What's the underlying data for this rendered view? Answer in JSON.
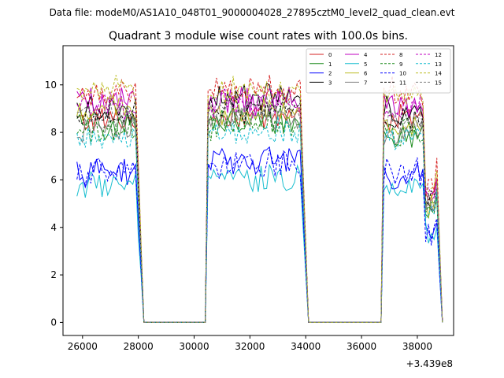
{
  "figure": {
    "suptitle": "Data file: modeM0/AS1A10_048T01_9000004028_27895cztM0_level2_quad_clean.evt",
    "title": "Quadrant 3 module wise count rates with 100.0s bins.",
    "offset_label": "+3.439e8"
  },
  "chart_data": {
    "type": "line",
    "title": "Quadrant 3 module wise count rates with 100.0s bins.",
    "xlabel": "",
    "ylabel": "",
    "xlim": [
      25300,
      39300
    ],
    "ylim": [
      -0.55,
      11.65
    ],
    "x_offset": 343900000,
    "xticks": [
      26000,
      28000,
      30000,
      32000,
      34000,
      36000,
      38000
    ],
    "yticks": [
      0,
      2,
      4,
      6,
      8,
      10
    ],
    "grid": false,
    "legend": {
      "placement": "top-right",
      "columns": 4
    },
    "segments": [
      {
        "start": 25800,
        "end": 28200
      },
      {
        "start": 30500,
        "end": 34100
      },
      {
        "start": 36800,
        "end": 38900
      }
    ],
    "series": [
      {
        "name": "0",
        "color": "#d62020",
        "dash": "solid",
        "levels": [
          8.5,
          8.7,
          8.6
        ]
      },
      {
        "name": "1",
        "color": "#1e8c1e",
        "dash": "solid",
        "levels": [
          8.3,
          8.5,
          7.9
        ]
      },
      {
        "name": "2",
        "color": "#0000ff",
        "dash": "solid",
        "levels": [
          6.3,
          6.9,
          6.1
        ]
      },
      {
        "name": "3",
        "color": "#000000",
        "dash": "solid",
        "levels": [
          9.0,
          9.5,
          8.9
        ]
      },
      {
        "name": "4",
        "color": "#c000c0",
        "dash": "solid",
        "levels": [
          9.3,
          9.3,
          9.2
        ]
      },
      {
        "name": "5",
        "color": "#17becf",
        "dash": "solid",
        "levels": [
          5.7,
          6.1,
          5.8
        ]
      },
      {
        "name": "6",
        "color": "#bcbd22",
        "dash": "solid",
        "levels": [
          8.9,
          8.8,
          8.4
        ]
      },
      {
        "name": "7",
        "color": "#7f7f7f",
        "dash": "solid",
        "levels": [
          8.2,
          8.6,
          8.1
        ]
      },
      {
        "name": "8",
        "color": "#d62020",
        "dash": "dashed",
        "levels": [
          9.7,
          9.8,
          9.8
        ]
      },
      {
        "name": "9",
        "color": "#1e8c1e",
        "dash": "dashed",
        "levels": [
          8.0,
          8.3,
          8.0
        ]
      },
      {
        "name": "10",
        "color": "#0000ff",
        "dash": "dashed",
        "levels": [
          6.3,
          6.6,
          6.3
        ]
      },
      {
        "name": "11",
        "color": "#000000",
        "dash": "dashed",
        "levels": [
          8.8,
          9.0,
          8.6
        ]
      },
      {
        "name": "12",
        "color": "#c000c0",
        "dash": "dashed",
        "levels": [
          9.1,
          9.2,
          9.0
        ]
      },
      {
        "name": "13",
        "color": "#17becf",
        "dash": "dashed",
        "levels": [
          7.7,
          8.0,
          7.6
        ]
      },
      {
        "name": "14",
        "color": "#bcbd22",
        "dash": "dashed",
        "levels": [
          9.8,
          9.7,
          9.6
        ]
      },
      {
        "name": "15",
        "color": "#7f7f7f",
        "dash": "dashed",
        "levels": [
          8.6,
          8.9,
          8.5
        ]
      }
    ]
  }
}
